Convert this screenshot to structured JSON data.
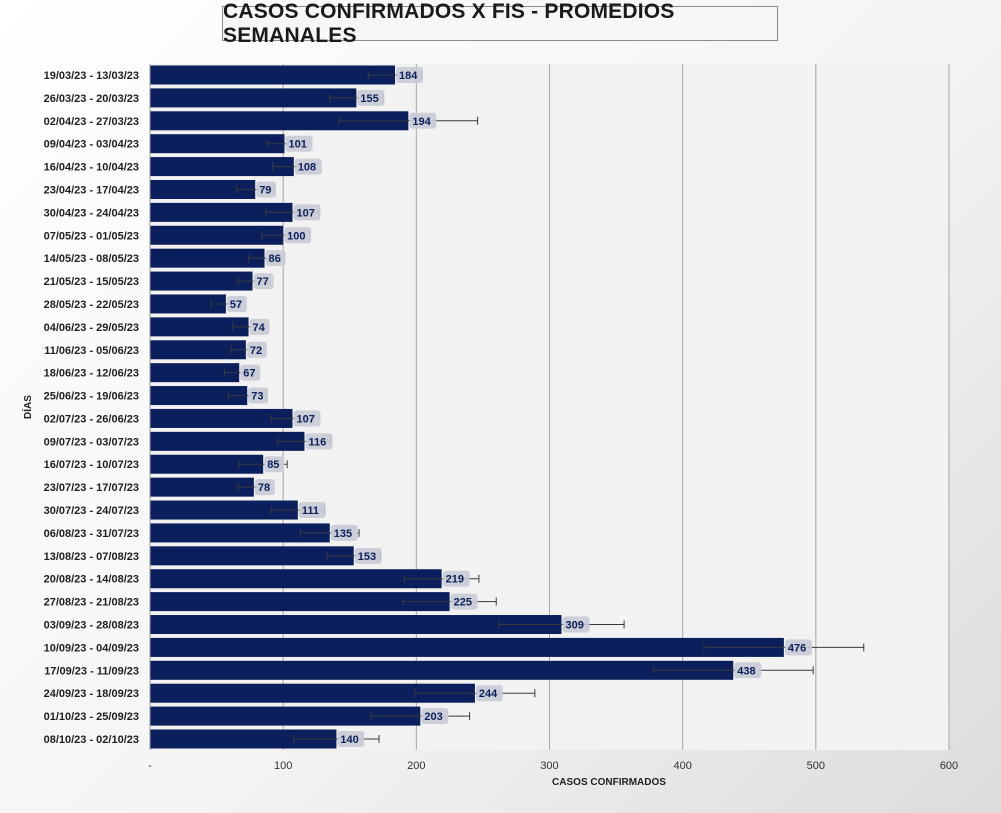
{
  "chart_data": {
    "type": "bar",
    "orientation": "horizontal",
    "title": "CASOS CONFIRMADOS X FIS - PROMEDIOS SEMANALES",
    "xlabel": "CASOS CONFIRMADOS",
    "ylabel": "DÍAS",
    "xlim": [
      0,
      600
    ],
    "xticks": [
      "-",
      "100",
      "200",
      "300",
      "400",
      "500",
      "600"
    ],
    "grid": "vertical",
    "bar_color": "#0b1f5c",
    "data_labels": true,
    "error_bars": true,
    "categories": [
      "19/03/23 - 13/03/23",
      "26/03/23 - 20/03/23",
      "02/04/23 - 27/03/23",
      "09/04/23 - 03/04/23",
      "16/04/23 - 10/04/23",
      "23/04/23 - 17/04/23",
      "30/04/23 - 24/04/23",
      "07/05/23 - 01/05/23",
      "14/05/23 - 08/05/23",
      "21/05/23 - 15/05/23",
      "28/05/23 - 22/05/23",
      "04/06/23 - 29/05/23",
      "11/06/23 - 05/06/23",
      "18/06/23 - 12/06/23",
      "25/06/23 - 19/06/23",
      "02/07/23 - 26/06/23",
      "09/07/23 - 03/07/23",
      "16/07/23 - 10/07/23",
      "23/07/23 - 17/07/23",
      "30/07/23 - 24/07/23",
      "06/08/23 - 31/07/23",
      "13/08/23 - 07/08/23",
      "20/08/23 - 14/08/23",
      "27/08/23 - 21/08/23",
      "03/09/23 - 28/08/23",
      "10/09/23 - 04/09/23",
      "17/09/23 - 11/09/23",
      "24/09/23 - 18/09/23",
      "01/10/23 - 25/09/23",
      "08/10/23 - 02/10/23"
    ],
    "values": [
      184,
      155,
      194,
      101,
      108,
      79,
      107,
      100,
      86,
      77,
      57,
      74,
      72,
      67,
      73,
      107,
      116,
      85,
      78,
      111,
      135,
      153,
      219,
      225,
      309,
      476,
      438,
      244,
      203,
      140
    ],
    "errors": [
      20,
      20,
      52,
      13,
      16,
      14,
      20,
      16,
      12,
      11,
      11,
      12,
      11,
      11,
      14,
      16,
      20,
      18,
      12,
      20,
      22,
      20,
      28,
      35,
      47,
      60,
      60,
      45,
      37,
      32
    ]
  }
}
